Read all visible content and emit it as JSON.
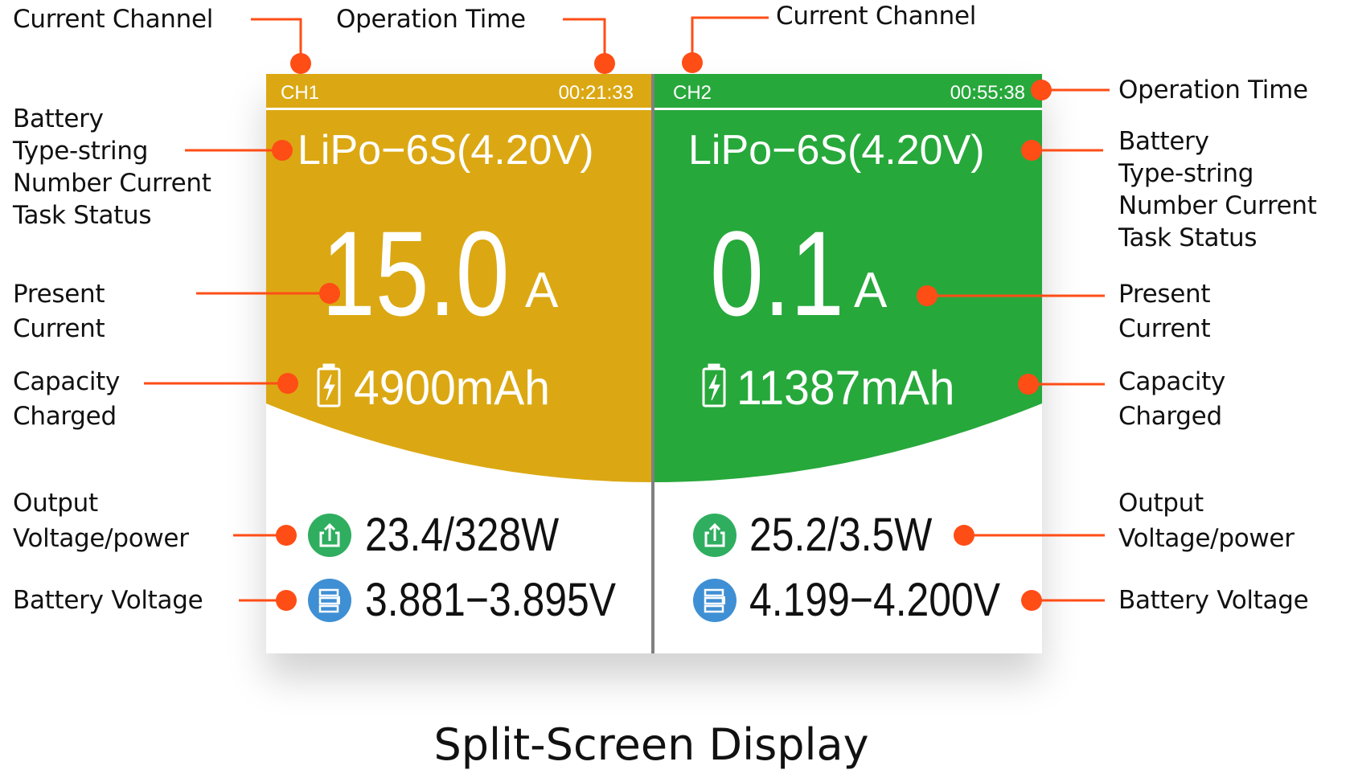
{
  "colors": {
    "ch1": "#DBA813",
    "ch2": "#27A83B",
    "callout": "#FF4D16",
    "output_icon": "#2FAE60",
    "battery_icon": "#3F8FD4"
  },
  "left_panel": {
    "channel": "CH1",
    "time": "00:21:33",
    "battery_type": "LiPo−6S(4.20V)",
    "current": "15.0",
    "current_unit": "A",
    "capacity": "4900mAh",
    "output": "23.4/328W",
    "cell_voltage": "3.881−3.895V"
  },
  "right_panel": {
    "channel": "CH2",
    "time": "00:55:38",
    "battery_type": "LiPo−6S(4.20V)",
    "current": "0.1",
    "current_unit": "A",
    "capacity": "11387mAh",
    "output": "25.2/3.5W",
    "cell_voltage": "4.199−4.200V"
  },
  "callouts": {
    "current_channel": "Current Channel",
    "operation_time": "Operation Time",
    "battery_info": [
      "Battery",
      "Type-string",
      "Number Current",
      "Task Status"
    ],
    "present_current": [
      "Present",
      "Current"
    ],
    "capacity_charged": [
      "Capacity",
      "Charged"
    ],
    "output": [
      "Output",
      "Voltage/power"
    ],
    "battery_voltage": "Battery Voltage"
  },
  "caption": "Split-Screen Display",
  "icons": {
    "capacity": "battery-charging-icon",
    "output": "output-export-icon",
    "cells": "battery-cells-icon"
  }
}
